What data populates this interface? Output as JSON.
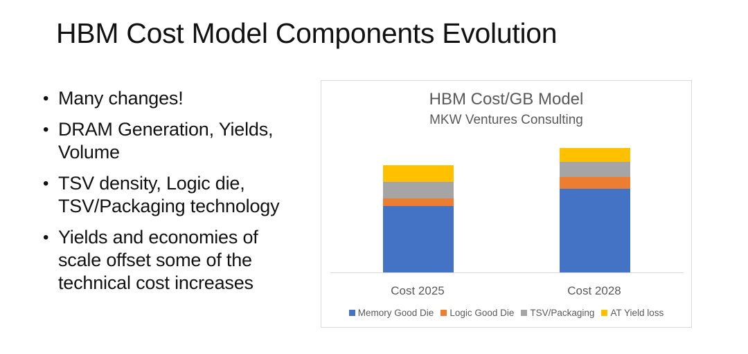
{
  "slide": {
    "title": "HBM Cost Model Components Evolution",
    "bullets": [
      {
        "marker": "•",
        "text": "Many changes!"
      },
      {
        "marker": "•",
        "text": "DRAM Generation, Yields, Volume"
      },
      {
        "marker": "•",
        "text": "TSV density, Logic die, TSV/Packaging technology"
      },
      {
        "marker": "•",
        "text": "Yields and economies of scale offset some of the technical cost increases"
      }
    ]
  },
  "chart_data": {
    "type": "bar",
    "stacked": true,
    "title": "HBM Cost/GB Model",
    "subtitle": "MKW Ventures Consulting",
    "xlabel": "",
    "ylabel": "",
    "y_axis_visible": false,
    "grid": false,
    "legend_position": "bottom",
    "categories": [
      "Cost 2025",
      "Cost 2028"
    ],
    "series": [
      {
        "name": "Memory Good Die",
        "color": "#4472C4",
        "values": [
          95.6,
          120.3
        ]
      },
      {
        "name": "Logic Good Die",
        "color": "#ED7D31",
        "values": [
          11.0,
          16.7
        ]
      },
      {
        "name": "TSV/Packaging",
        "color": "#A5A5A5",
        "values": [
          23.7,
          22.7
        ]
      },
      {
        "name": "AT Yield loss",
        "color": "#FFC000",
        "values": [
          24.3,
          19.3
        ]
      }
    ],
    "totals": [
      154.6,
      179.0
    ],
    "value_units_note": "relative (no axis shown; values estimated from bar pixel heights)",
    "ylim": [
      0,
      236
    ]
  }
}
